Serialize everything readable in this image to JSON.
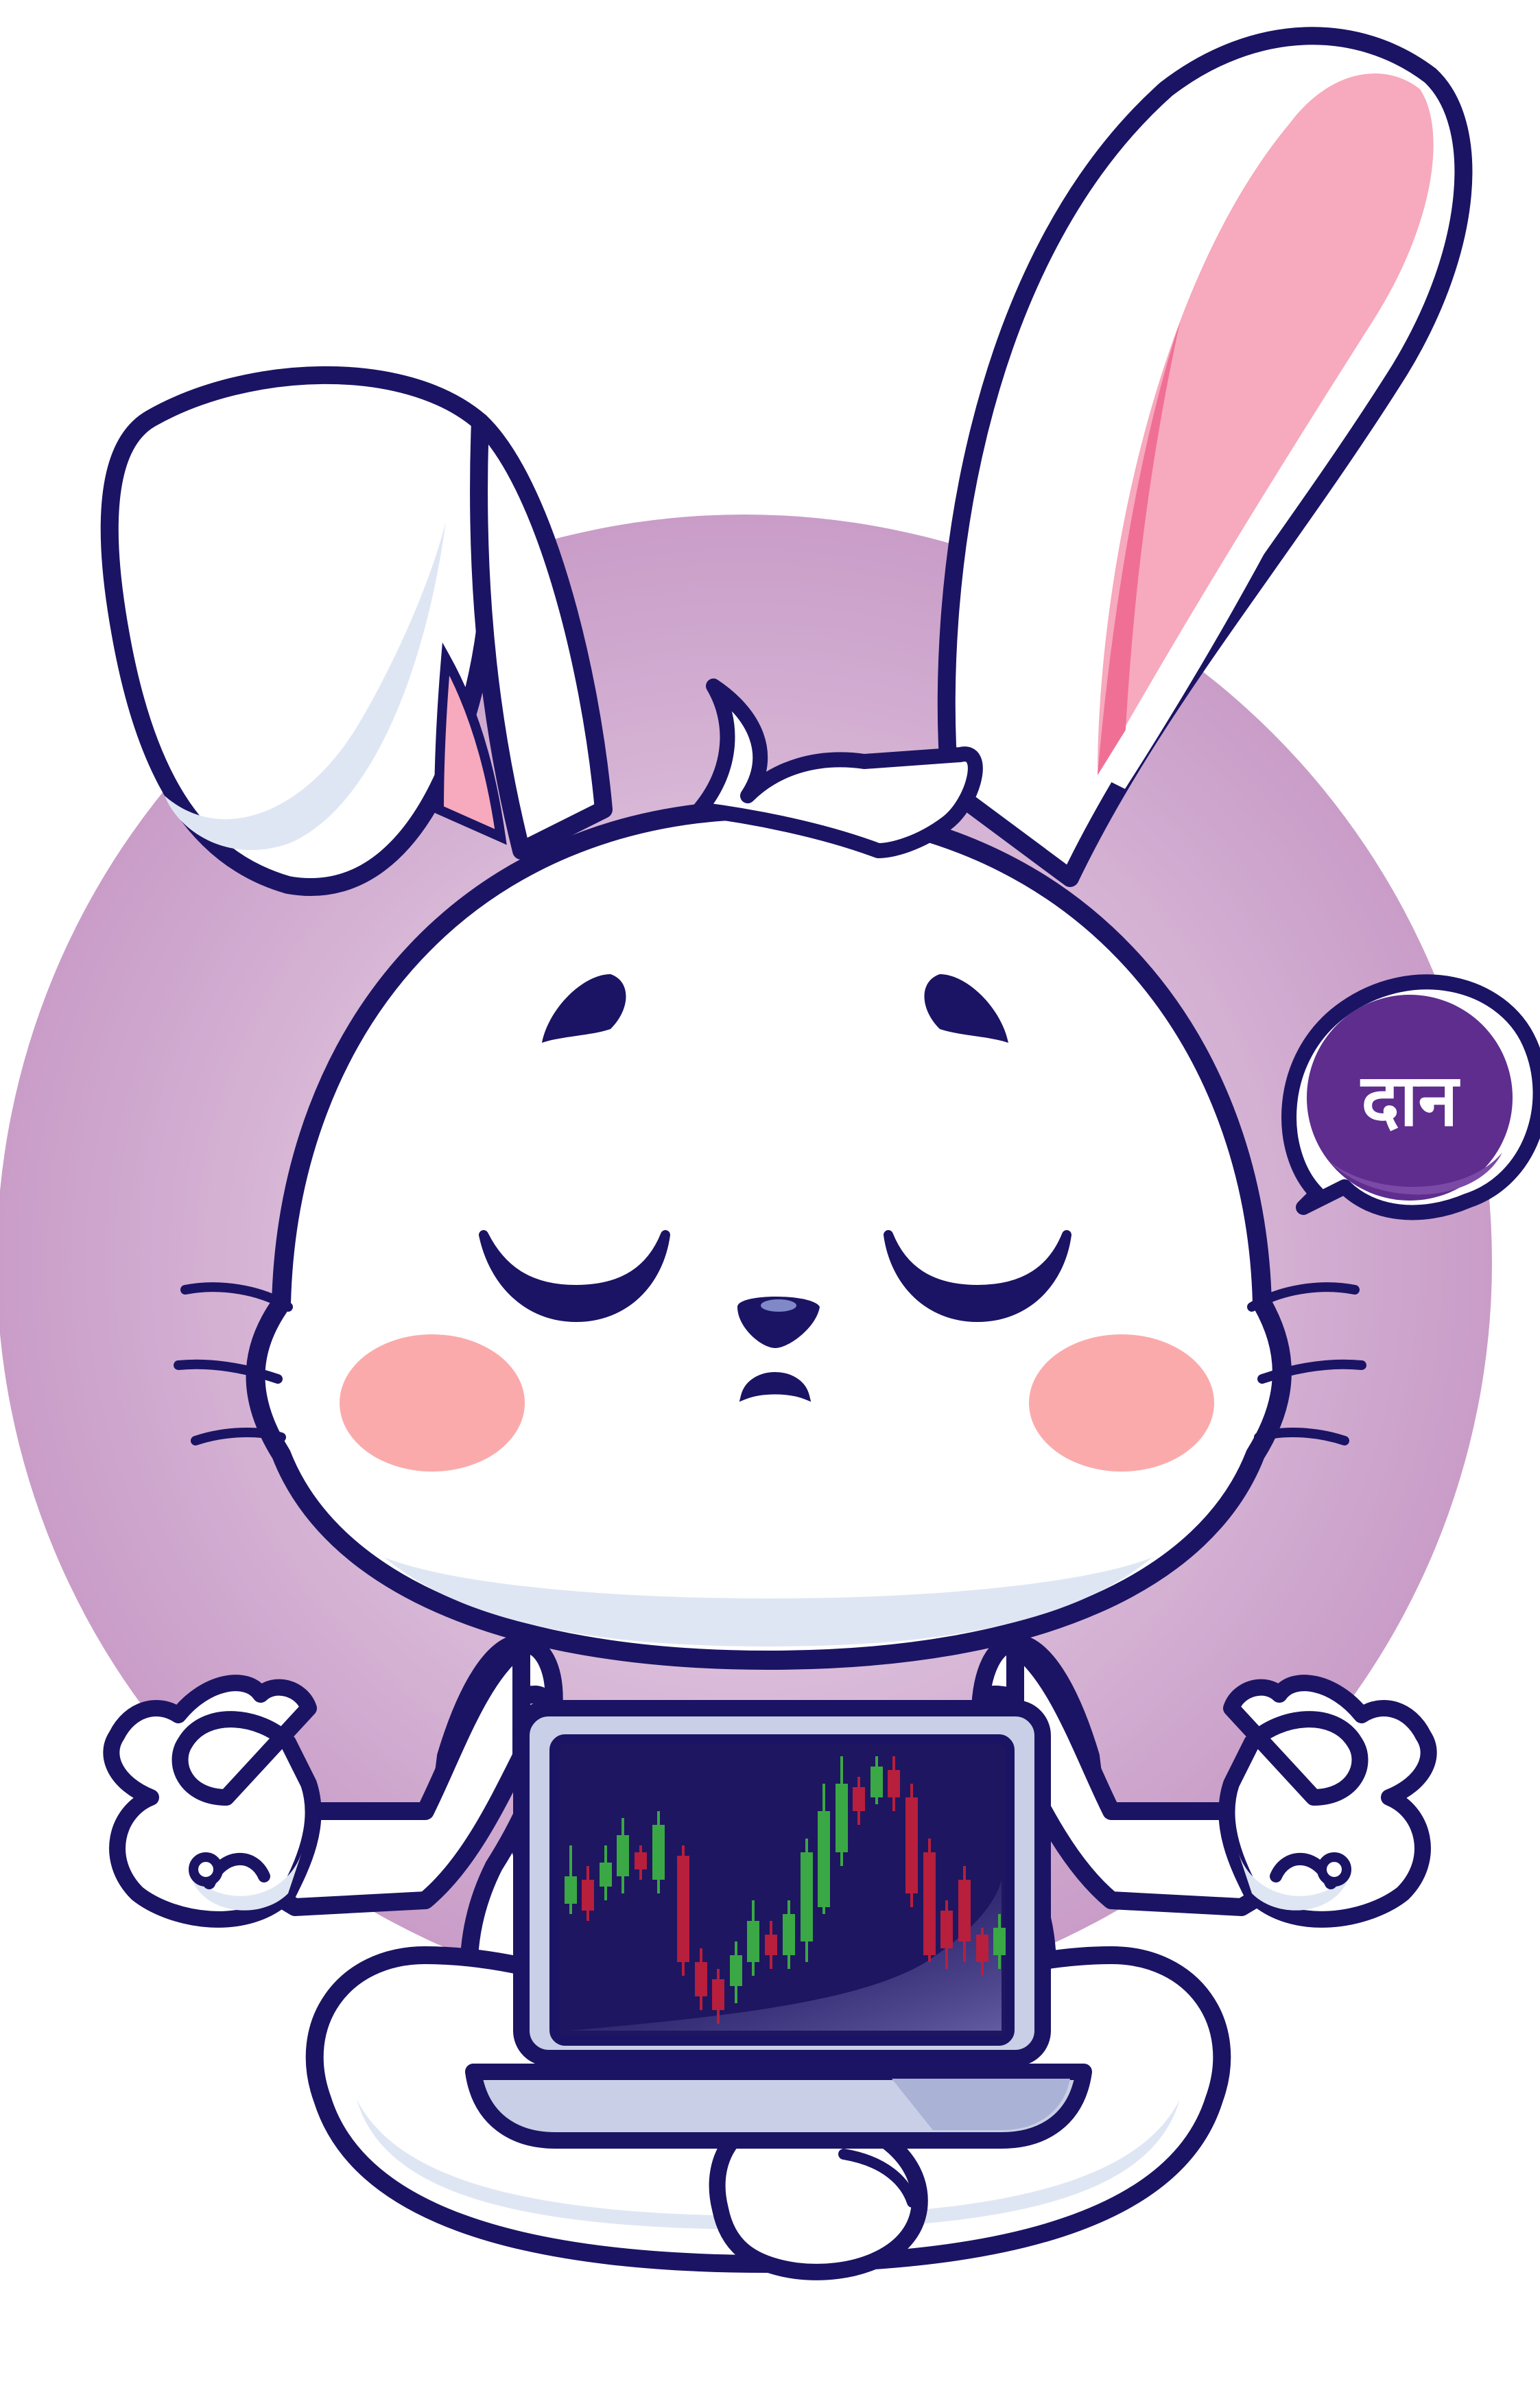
{
  "illustration": {
    "subject": "meditating-bunny-with-laptop",
    "speech_bubble": {
      "text": "दान"
    },
    "colors": {
      "outline": "#1b1464",
      "background_circle": "#cfa3cc",
      "background_circle_light": "#e6cde4",
      "fur": "#ffffff",
      "fur_shade": "#dfe6f3",
      "ear_inner": "#f7a9bd",
      "ear_inner_dark": "#f06f95",
      "cheeks": "#fbaaab",
      "bubble": "#5e2d8e",
      "screen": "#1e1660",
      "laptop_frame": "#c9cfe6",
      "laptop_base": "#aab2d6",
      "candle_up": "#3aa845",
      "candle_down": "#b71f3c"
    },
    "icons": [
      "bunny-illustration",
      "laptop-icon",
      "candlestick-chart-icon",
      "speech-bubble-icon"
    ]
  }
}
